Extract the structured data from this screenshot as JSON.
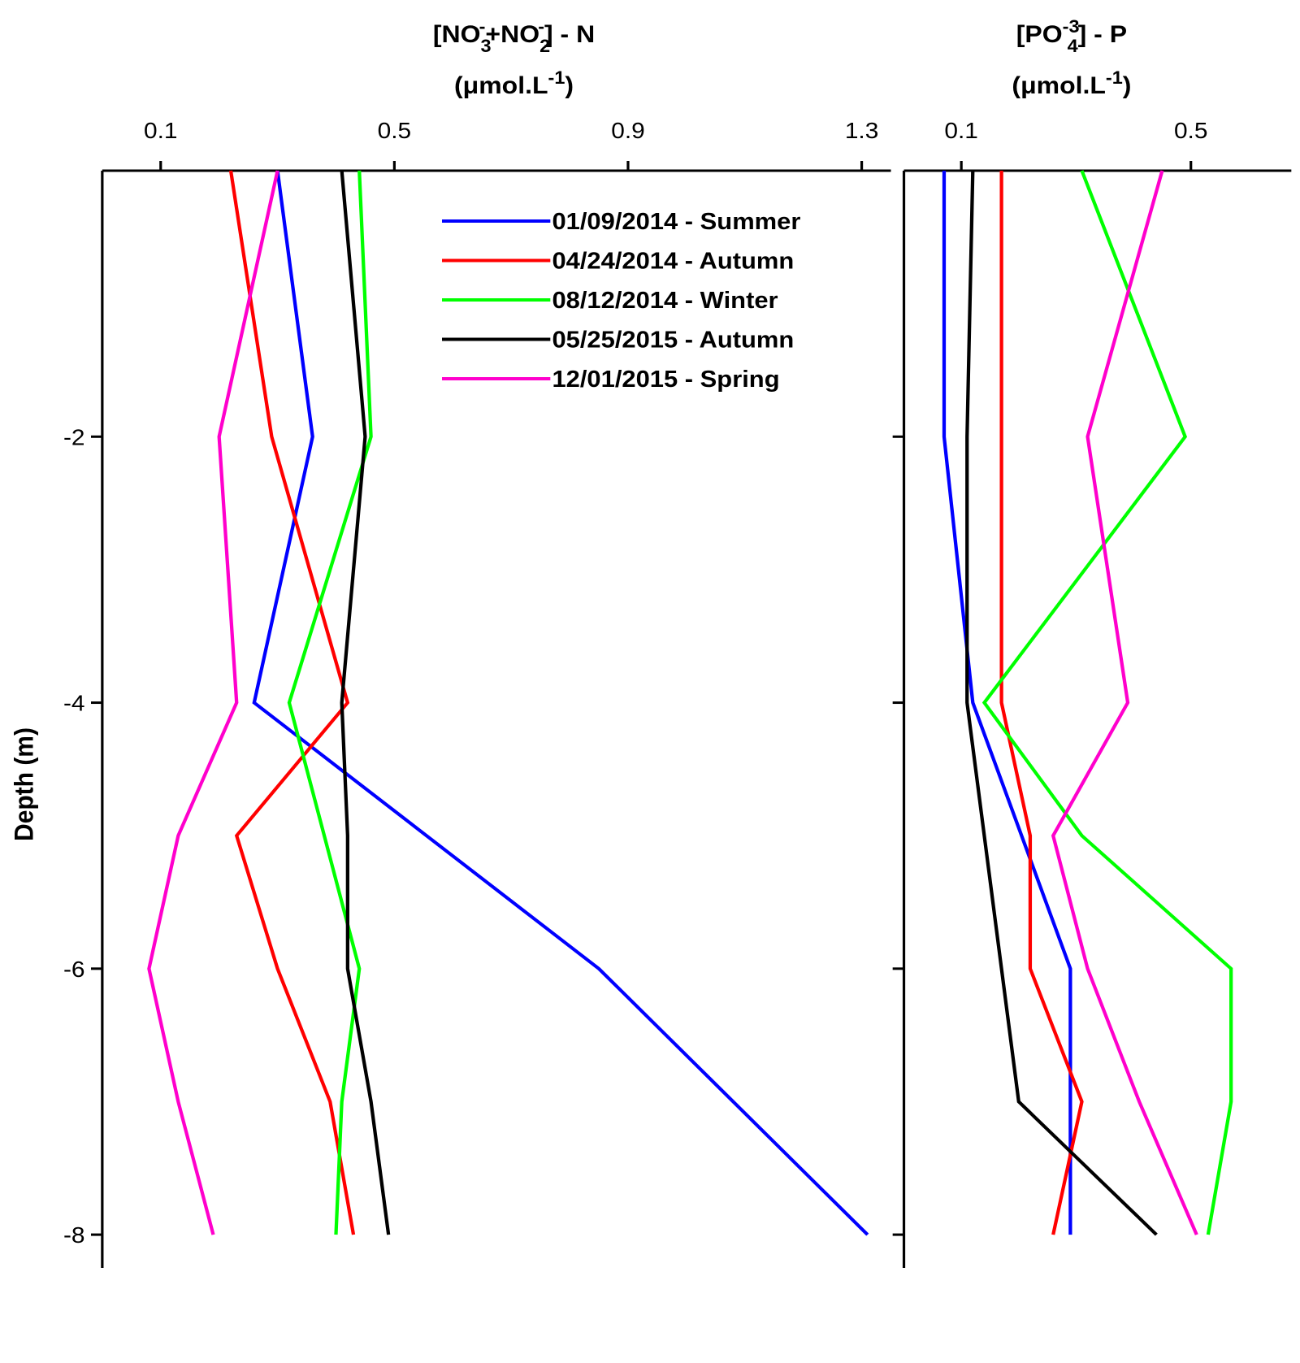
{
  "chart_data": [
    {
      "type": "line",
      "title": [
        {
          "text": "[NO"
        },
        {
          "text": "3",
          "pos": "sub"
        },
        {
          "text": "-",
          "pos": "sup"
        },
        {
          "text": "+NO"
        },
        {
          "text": "2",
          "pos": "sub"
        },
        {
          "text": "-",
          "pos": "sup"
        },
        {
          "text": "] - N"
        }
      ],
      "units": [
        {
          "text": "(μmol.L"
        },
        {
          "text": "-1",
          "pos": "sup"
        },
        {
          "text": ")"
        }
      ],
      "ylabel": "Depth (m)",
      "xlim": [
        0,
        1.35
      ],
      "xticks": [
        0.1,
        0.5,
        0.9,
        1.3
      ],
      "ylim": [
        -8.25,
        0
      ],
      "yticks": [
        -8,
        -6,
        -4,
        -2
      ],
      "ytick_labels_shown": true,
      "legend": "upper right",
      "series": [
        {
          "name": "01/09/2014 - Summer",
          "color": "#0000ff",
          "depth": [
            0,
            -2,
            -4,
            -6,
            -8
          ],
          "values": [
            0.3,
            0.36,
            0.26,
            0.85,
            1.31
          ]
        },
        {
          "name": " 04/24/2014 - Autumn",
          "color": "#ff0000",
          "depth": [
            0,
            -2,
            -4,
            -5,
            -6,
            -7,
            -8
          ],
          "values": [
            0.22,
            0.29,
            0.42,
            0.23,
            0.3,
            0.39,
            0.43
          ]
        },
        {
          "name": " 08/12/2014 - Winter",
          "color": "#00ff00",
          "depth": [
            0,
            -2,
            -4,
            -6,
            -7,
            -8
          ],
          "values": [
            0.44,
            0.46,
            0.32,
            0.44,
            0.41,
            0.4
          ]
        },
        {
          "name": "05/25/2015 - Autumn",
          "color": "#000000",
          "depth": [
            0,
            -2,
            -4,
            -5,
            -6,
            -7,
            -8
          ],
          "values": [
            0.41,
            0.45,
            0.41,
            0.42,
            0.42,
            0.46,
            0.49
          ]
        },
        {
          "name": "12/01/2015 - Spring",
          "color": "#ff00cc",
          "depth": [
            0,
            -2,
            -4,
            -5,
            -6,
            -7,
            -8
          ],
          "values": [
            0.3,
            0.2,
            0.23,
            0.13,
            0.08,
            0.13,
            0.19
          ]
        }
      ]
    },
    {
      "type": "line",
      "title": [
        {
          "text": "[PO"
        },
        {
          "text": "-3",
          "pos": "sup"
        },
        {
          "text": "4",
          "pos": "sub"
        },
        {
          "text": "] - P"
        }
      ],
      "units": [
        {
          "text": "(μmol.L"
        },
        {
          "text": "-1",
          "pos": "sup"
        },
        {
          "text": ")"
        }
      ],
      "xlim": [
        0,
        0.675
      ],
      "xticks": [
        0.1,
        0.5
      ],
      "ylim": [
        -8.25,
        0
      ],
      "yticks": [
        -8,
        -6,
        -4,
        -2
      ],
      "ytick_labels_shown": false,
      "series": [
        {
          "color": "#0000ff",
          "depth": [
            0,
            -2,
            -4,
            -6,
            -8
          ],
          "values": [
            0.07,
            0.07,
            0.12,
            0.29,
            0.29
          ]
        },
        {
          "color": "#ff0000",
          "depth": [
            0,
            -2,
            -4,
            -5,
            -6,
            -7,
            -8
          ],
          "values": [
            0.17,
            0.17,
            0.17,
            0.22,
            0.22,
            0.31,
            0.26
          ]
        },
        {
          "color": "#00ff00",
          "depth": [
            0,
            -2,
            -4,
            -5,
            -6,
            -7,
            -8
          ],
          "values": [
            0.31,
            0.49,
            0.14,
            0.31,
            0.57,
            0.57,
            0.53
          ]
        },
        {
          "color": "#000000",
          "depth": [
            0,
            -2,
            -4,
            -5,
            -6,
            -7,
            -8
          ],
          "values": [
            0.12,
            0.11,
            0.11,
            0.14,
            0.17,
            0.2,
            0.44
          ]
        },
        {
          "color": "#ff00cc",
          "depth": [
            0,
            -2,
            -4,
            -5,
            -6,
            -7,
            -8
          ],
          "values": [
            0.45,
            0.32,
            0.39,
            0.26,
            0.32,
            0.41,
            0.51
          ]
        }
      ]
    }
  ]
}
